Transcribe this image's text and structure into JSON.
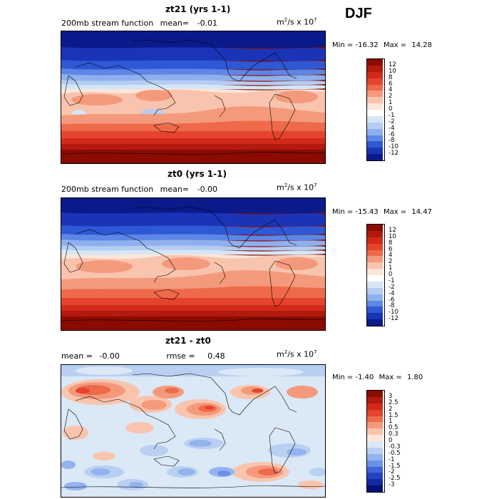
{
  "season": "DJF",
  "panels": [
    {
      "title": "zt21 (yrs 1-1)",
      "left_label": "200mb stream function",
      "mean_label": "mean=",
      "mean_value": "-0.01",
      "rmse_label": "",
      "rmse_value": "",
      "units_base": "m",
      "units_exp": "2",
      "units_mid": "/s x 10",
      "units_pow": "7",
      "min_label": "Min =",
      "min_value": "-16.32",
      "max_label": "Max =",
      "max_value": "14.28",
      "levels": [
        "12",
        "10",
        "8",
        "6",
        "4",
        "2",
        "1",
        "0",
        "-1",
        "-2",
        "-4",
        "-6",
        "-8",
        "-10",
        "-12"
      ],
      "colors": [
        "#8b0b00",
        "#b11a0c",
        "#d22a1a",
        "#e4442c",
        "#ee6a4a",
        "#f49a7c",
        "#f9c4ad",
        "#fce6da",
        "#ffffff",
        "#d6e6f7",
        "#b4cdf2",
        "#8fb0ee",
        "#5d86e6",
        "#2f58d5",
        "#1a34b8",
        "#0a1a8a"
      ]
    },
    {
      "title": "zt0 (yrs 1-1)",
      "left_label": "200mb stream function",
      "mean_label": "mean=",
      "mean_value": "-0.00",
      "rmse_label": "",
      "rmse_value": "",
      "units_base": "m",
      "units_exp": "2",
      "units_mid": "/s x 10",
      "units_pow": "7",
      "min_label": "Min =",
      "min_value": "-15.43",
      "max_label": "Max =",
      "max_value": "14.47",
      "levels": [
        "12",
        "10",
        "8",
        "6",
        "4",
        "2",
        "1",
        "0",
        "-1",
        "-2",
        "-4",
        "-6",
        "-8",
        "-10",
        "-12"
      ],
      "colors": [
        "#8b0b00",
        "#b11a0c",
        "#d22a1a",
        "#e4442c",
        "#ee6a4a",
        "#f49a7c",
        "#f9c4ad",
        "#fce6da",
        "#ffffff",
        "#d6e6f7",
        "#b4cdf2",
        "#8fb0ee",
        "#5d86e6",
        "#2f58d5",
        "#1a34b8",
        "#0a1a8a"
      ]
    },
    {
      "title": "zt21 - zt0",
      "left_label": "",
      "mean_label": "mean =",
      "mean_value": "-0.00",
      "rmse_label": "rmse =",
      "rmse_value": "0.48",
      "units_base": "m",
      "units_exp": "2",
      "units_mid": "/s x 10",
      "units_pow": "7",
      "min_label": "Min =",
      "min_value": "-1.40",
      "max_label": "Max =",
      "max_value": "1.80",
      "levels": [
        "3",
        "2.5",
        "2",
        "1.5",
        "1",
        "0.5",
        "0.3",
        "0",
        "-0.3",
        "-0.5",
        "-1",
        "-1.5",
        "-2",
        "-2.5",
        "-3"
      ],
      "colors": [
        "#8b0b00",
        "#b11a0c",
        "#d22a1a",
        "#e4442c",
        "#ee6a4a",
        "#f49a7c",
        "#f9c4ad",
        "#fce6da",
        "#dbe8f6",
        "#b9d0f2",
        "#93b3ee",
        "#6a90e8",
        "#3f65da",
        "#2542c4",
        "#1228a0",
        "#070f78"
      ]
    }
  ]
}
